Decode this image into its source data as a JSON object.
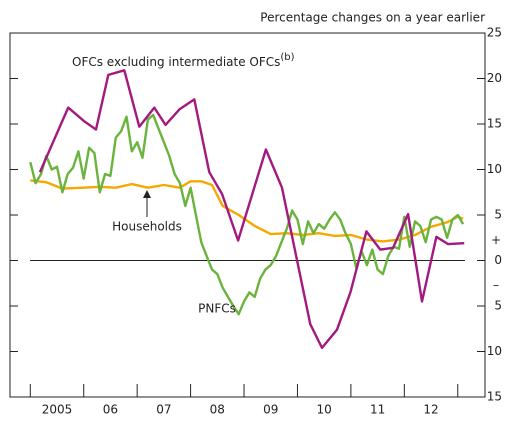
{
  "chart_data": {
    "type": "line",
    "subtitle": "Percentage changes on a year earlier",
    "xlim": [
      2004.62,
      2013.51
    ],
    "xticks": [
      2005,
      2006,
      2007,
      2008,
      2009,
      2010,
      2011,
      2012,
      2013
    ],
    "x_labels": [
      {
        "value": 2005.5,
        "label": "2005"
      },
      {
        "value": 2006.5,
        "label": "06"
      },
      {
        "value": 2007.5,
        "label": "07"
      },
      {
        "value": 2008.5,
        "label": "08"
      },
      {
        "value": 2009.5,
        "label": "09"
      },
      {
        "value": 2010.5,
        "label": "10"
      },
      {
        "value": 2011.5,
        "label": "11"
      },
      {
        "value": 2012.5,
        "label": "12"
      }
    ],
    "ylim": [
      -15,
      25
    ],
    "yticks": [
      25,
      20,
      15,
      10,
      5,
      0,
      {
        "value": -5,
        "label": "5"
      },
      {
        "value": -10,
        "label": "10"
      },
      {
        "value": -15,
        "label": "15"
      }
    ],
    "positive_sign": "+",
    "negative_sign": "–",
    "series": [
      {
        "name": "OFCs excluding intermediate OFCs",
        "footnote_marker": "(b)",
        "color": "#a3197f",
        "x": [
          2005.18,
          2005.71,
          2006.01,
          2006.23,
          2006.46,
          2006.76,
          2007.04,
          2007.32,
          2007.53,
          2007.79,
          2008.07,
          2008.35,
          2008.59,
          2008.89,
          2009.41,
          2009.71,
          2010.24,
          2010.46,
          2010.74,
          2010.99,
          2011.29,
          2011.55,
          2011.79,
          2012.07,
          2012.33,
          2012.6,
          2012.82,
          2013.12
        ],
        "values": [
          9.7,
          16.8,
          15.3,
          14.4,
          20.4,
          20.9,
          14.7,
          16.8,
          14.9,
          16.6,
          17.7,
          9.7,
          7.3,
          2.2,
          12.2,
          8.0,
          -7.0,
          -9.6,
          -7.6,
          -3.5,
          3.2,
          1.2,
          1.4,
          5.1,
          -4.5,
          2.6,
          1.8,
          1.9
        ]
      },
      {
        "name": "Households",
        "color": "#f5a800",
        "x": [
          2005.0,
          2005.3,
          2005.6,
          2006.0,
          2006.3,
          2006.6,
          2006.9,
          2007.2,
          2007.5,
          2007.8,
          2008.0,
          2008.2,
          2008.4,
          2008.6,
          2008.9,
          2009.2,
          2009.5,
          2009.8,
          2010.1,
          2010.4,
          2010.7,
          2011.0,
          2011.3,
          2011.6,
          2011.9,
          2012.2,
          2012.5,
          2012.8,
          2013.0,
          2013.1
        ],
        "values": [
          8.8,
          8.6,
          7.9,
          8.0,
          8.1,
          8.0,
          8.4,
          8.0,
          8.3,
          8.0,
          8.7,
          8.7,
          8.3,
          6.0,
          5.0,
          3.8,
          2.9,
          3.0,
          2.8,
          3.0,
          2.7,
          2.8,
          2.3,
          2.1,
          2.3,
          2.8,
          3.7,
          4.2,
          4.8,
          4.6
        ]
      },
      {
        "name": "PNFCs",
        "color": "#6ab43e",
        "x": [
          2005.0,
          2005.1,
          2005.2,
          2005.3,
          2005.4,
          2005.5,
          2005.6,
          2005.7,
          2005.8,
          2005.9,
          2006.0,
          2006.1,
          2006.2,
          2006.3,
          2006.4,
          2006.5,
          2006.6,
          2006.7,
          2006.8,
          2006.9,
          2007.0,
          2007.1,
          2007.2,
          2007.3,
          2007.4,
          2007.5,
          2007.6,
          2007.7,
          2007.8,
          2007.9,
          2008.0,
          2008.1,
          2008.2,
          2008.3,
          2008.4,
          2008.5,
          2008.6,
          2008.7,
          2008.8,
          2008.9,
          2009.0,
          2009.1,
          2009.2,
          2009.3,
          2009.4,
          2009.5,
          2009.6,
          2009.7,
          2009.8,
          2009.9,
          2010.0,
          2010.1,
          2010.2,
          2010.3,
          2010.4,
          2010.5,
          2010.6,
          2010.7,
          2010.8,
          2010.9,
          2011.0,
          2011.1,
          2011.2,
          2011.3,
          2011.4,
          2011.5,
          2011.6,
          2011.7,
          2011.8,
          2011.9,
          2012.0,
          2012.1,
          2012.2,
          2012.3,
          2012.4,
          2012.5,
          2012.6,
          2012.7,
          2012.8,
          2012.9,
          2013.0,
          2013.1
        ],
        "values": [
          10.8,
          8.5,
          9.5,
          11.5,
          10.0,
          10.3,
          7.5,
          9.5,
          10.2,
          12.0,
          9.0,
          12.4,
          11.8,
          7.5,
          9.5,
          9.3,
          13.5,
          14.2,
          15.8,
          12.0,
          13.0,
          11.3,
          15.5,
          16.0,
          14.5,
          13.0,
          11.5,
          9.5,
          8.5,
          6.0,
          8.0,
          5.0,
          2.0,
          0.5,
          -1.0,
          -1.5,
          -3.0,
          -4.0,
          -5.0,
          -5.9,
          -4.5,
          -3.5,
          -4.0,
          -2.0,
          -1.0,
          -0.5,
          0.5,
          2.0,
          3.5,
          5.5,
          4.5,
          1.8,
          4.3,
          3.0,
          4.0,
          3.5,
          4.5,
          5.3,
          4.5,
          3.0,
          1.8,
          -0.8,
          1.0,
          -0.5,
          1.2,
          -1.0,
          -1.5,
          0.5,
          1.5,
          1.3,
          4.8,
          1.5,
          4.3,
          3.8,
          2.0,
          4.5,
          4.8,
          4.5,
          2.5,
          4.5,
          5.0,
          4.0
        ]
      }
    ]
  }
}
